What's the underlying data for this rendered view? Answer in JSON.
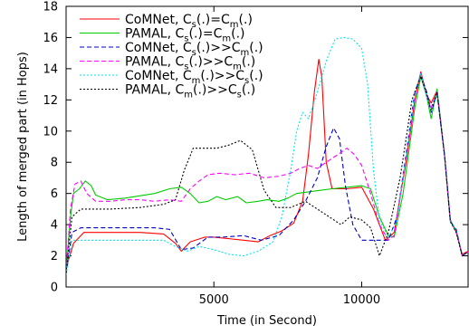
{
  "chart_data": {
    "type": "line",
    "title": "",
    "xlabel": "Time (in Second)",
    "ylabel": "Length of merged part (in Hops)",
    "xlim": [
      0,
      13600
    ],
    "ylim": [
      0,
      18
    ],
    "x_ticks": [
      5000,
      10000
    ],
    "y_ticks": [
      0,
      2,
      4,
      6,
      8,
      10,
      12,
      14,
      16,
      18
    ],
    "legend_position": "top-left",
    "series": [
      {
        "name": "CoMNet, C_s(.)=C_m(.)",
        "legend": {
          "a": "CoMNet, C",
          "s1": "s",
          "b": "(.)=C",
          "s2": "m",
          "c": "(.)"
        },
        "color": "#ff0000",
        "dash": "solid",
        "points": [
          [
            0,
            1.2
          ],
          [
            250,
            2.8
          ],
          [
            600,
            3.5
          ],
          [
            1200,
            3.5
          ],
          [
            2500,
            3.5
          ],
          [
            3300,
            3.4
          ],
          [
            3700,
            2.8
          ],
          [
            3900,
            2.3
          ],
          [
            4200,
            2.9
          ],
          [
            4700,
            3.2
          ],
          [
            5000,
            3.2
          ],
          [
            5500,
            3.1
          ],
          [
            6000,
            3.0
          ],
          [
            6500,
            2.9
          ],
          [
            6900,
            3.3
          ],
          [
            7300,
            3.6
          ],
          [
            7700,
            4.1
          ],
          [
            8000,
            5.5
          ],
          [
            8200,
            8.5
          ],
          [
            8400,
            12.5
          ],
          [
            8550,
            14.6
          ],
          [
            8650,
            13.5
          ],
          [
            8800,
            8.0
          ],
          [
            9000,
            6.3
          ],
          [
            9500,
            6.3
          ],
          [
            10000,
            6.4
          ],
          [
            10400,
            5.0
          ],
          [
            10800,
            3.0
          ],
          [
            11100,
            3.5
          ],
          [
            11500,
            8.0
          ],
          [
            11800,
            12.0
          ],
          [
            12000,
            13.8
          ],
          [
            12200,
            12.3
          ],
          [
            12350,
            11.8
          ],
          [
            12550,
            12.6
          ],
          [
            12800,
            8.5
          ],
          [
            13000,
            4.3
          ],
          [
            13200,
            3.5
          ],
          [
            13400,
            2.1
          ],
          [
            13600,
            2.3
          ],
          [
            13900,
            2.6
          ],
          [
            14000,
            3.0
          ]
        ]
      },
      {
        "name": "PAMAL, C_s(.)=C_m(.)",
        "legend": {
          "a": "PAMAL, C",
          "s1": "s",
          "b": "(.)=C",
          "s2": "m",
          "c": "(.)"
        },
        "color": "#00cc00",
        "dash": "solid",
        "points": [
          [
            0,
            1.0
          ],
          [
            150,
            4.5
          ],
          [
            250,
            6.0
          ],
          [
            450,
            6.3
          ],
          [
            650,
            6.8
          ],
          [
            850,
            6.5
          ],
          [
            1000,
            5.9
          ],
          [
            1400,
            5.6
          ],
          [
            2000,
            5.7
          ],
          [
            3000,
            6.0
          ],
          [
            3500,
            6.3
          ],
          [
            3900,
            6.4
          ],
          [
            4200,
            6.0
          ],
          [
            4500,
            5.4
          ],
          [
            4800,
            5.5
          ],
          [
            5100,
            5.8
          ],
          [
            5400,
            5.6
          ],
          [
            5800,
            5.8
          ],
          [
            6100,
            5.4
          ],
          [
            6500,
            5.5
          ],
          [
            6800,
            5.6
          ],
          [
            7200,
            5.5
          ],
          [
            7500,
            5.7
          ],
          [
            7800,
            6.0
          ],
          [
            8200,
            6.1
          ],
          [
            8600,
            6.2
          ],
          [
            9000,
            6.3
          ],
          [
            9500,
            6.4
          ],
          [
            10000,
            6.5
          ],
          [
            10300,
            6.3
          ],
          [
            10600,
            4.5
          ],
          [
            10900,
            3.3
          ],
          [
            11100,
            3.2
          ],
          [
            11400,
            6.0
          ],
          [
            11800,
            11.5
          ],
          [
            12000,
            13.5
          ],
          [
            12200,
            12.2
          ],
          [
            12350,
            10.8
          ],
          [
            12550,
            12.7
          ],
          [
            12800,
            8.5
          ],
          [
            13000,
            4.2
          ],
          [
            13200,
            3.6
          ],
          [
            13400,
            2.0
          ],
          [
            13700,
            2.4
          ],
          [
            14000,
            3.0
          ]
        ]
      },
      {
        "name": "CoMNet, C_s(.)>>C_m(.)",
        "legend": {
          "a": "CoMNet, C",
          "s1": "s",
          "b": "(.)>>C",
          "s2": "m",
          "c": "(.)"
        },
        "color": "#0000cc",
        "dash": "5,3",
        "points": [
          [
            0,
            0.8
          ],
          [
            200,
            3.5
          ],
          [
            500,
            3.8
          ],
          [
            1000,
            3.8
          ],
          [
            2000,
            3.8
          ],
          [
            3000,
            3.8
          ],
          [
            3500,
            3.7
          ],
          [
            3900,
            2.4
          ],
          [
            4300,
            2.5
          ],
          [
            4800,
            3.2
          ],
          [
            5300,
            3.2
          ],
          [
            6000,
            3.3
          ],
          [
            6600,
            3.0
          ],
          [
            7200,
            3.3
          ],
          [
            7700,
            4.3
          ],
          [
            8100,
            5.5
          ],
          [
            8500,
            7.0
          ],
          [
            8800,
            9.0
          ],
          [
            9050,
            10.2
          ],
          [
            9250,
            9.5
          ],
          [
            9450,
            6.5
          ],
          [
            9700,
            4.0
          ],
          [
            10000,
            3.0
          ],
          [
            10500,
            3.0
          ],
          [
            10900,
            3.0
          ],
          [
            11200,
            4.5
          ],
          [
            11500,
            8.5
          ],
          [
            11800,
            12.5
          ],
          [
            12000,
            13.6
          ],
          [
            12200,
            12.5
          ],
          [
            12350,
            11.2
          ],
          [
            12550,
            12.4
          ],
          [
            12800,
            8.5
          ],
          [
            13000,
            4.2
          ],
          [
            13200,
            3.7
          ],
          [
            13400,
            2.0
          ],
          [
            13700,
            2.4
          ],
          [
            14000,
            3.0
          ]
        ]
      },
      {
        "name": "PAMAL, C_s(.)>>C_m(.)",
        "legend": {
          "a": "PAMAL, C",
          "s1": "s",
          "b": "(.)>>C",
          "s2": "m",
          "c": "(.)"
        },
        "color": "#ff00ff",
        "dash": "5,3",
        "points": [
          [
            0,
            1.0
          ],
          [
            150,
            5.0
          ],
          [
            300,
            6.6
          ],
          [
            500,
            6.8
          ],
          [
            700,
            6.0
          ],
          [
            1000,
            5.5
          ],
          [
            1500,
            5.5
          ],
          [
            2000,
            5.6
          ],
          [
            2500,
            5.6
          ],
          [
            3000,
            5.5
          ],
          [
            3500,
            5.6
          ],
          [
            3900,
            5.5
          ],
          [
            4200,
            6.3
          ],
          [
            4500,
            6.8
          ],
          [
            4800,
            7.2
          ],
          [
            5200,
            7.3
          ],
          [
            5700,
            7.2
          ],
          [
            6200,
            7.3
          ],
          [
            6700,
            7.0
          ],
          [
            7200,
            7.1
          ],
          [
            7600,
            7.3
          ],
          [
            7900,
            7.6
          ],
          [
            8200,
            7.8
          ],
          [
            8500,
            7.6
          ],
          [
            8800,
            8.0
          ],
          [
            9200,
            8.5
          ],
          [
            9500,
            8.9
          ],
          [
            9750,
            8.5
          ],
          [
            10000,
            7.8
          ],
          [
            10300,
            6.0
          ],
          [
            10600,
            4.0
          ],
          [
            10900,
            3.0
          ],
          [
            11100,
            3.3
          ],
          [
            11400,
            7.0
          ],
          [
            11800,
            12.0
          ],
          [
            12000,
            13.7
          ],
          [
            12200,
            12.3
          ],
          [
            12350,
            11.5
          ],
          [
            12550,
            12.5
          ],
          [
            12800,
            8.5
          ],
          [
            13000,
            4.3
          ],
          [
            13200,
            3.6
          ],
          [
            13400,
            2.0
          ],
          [
            13700,
            2.4
          ],
          [
            14000,
            3.0
          ]
        ]
      },
      {
        "name": "CoMNet, C_m(.)>>C_s(.)",
        "legend": {
          "a": "CoMNet, C",
          "s1": "m",
          "b": "(.)>>C",
          "s2": "s",
          "c": "(.)"
        },
        "color": "#00e5ee",
        "dash": "2,2",
        "points": [
          [
            0,
            0.8
          ],
          [
            200,
            3.0
          ],
          [
            500,
            3.0
          ],
          [
            1500,
            3.0
          ],
          [
            2500,
            3.0
          ],
          [
            3300,
            3.0
          ],
          [
            3700,
            2.6
          ],
          [
            4100,
            2.3
          ],
          [
            4500,
            2.6
          ],
          [
            5000,
            2.4
          ],
          [
            5500,
            2.1
          ],
          [
            6000,
            2.0
          ],
          [
            6500,
            2.3
          ],
          [
            7000,
            2.9
          ],
          [
            7300,
            4.5
          ],
          [
            7600,
            7.5
          ],
          [
            7800,
            10.0
          ],
          [
            8000,
            11.2
          ],
          [
            8200,
            10.8
          ],
          [
            8500,
            12.5
          ],
          [
            8800,
            14.5
          ],
          [
            9100,
            15.9
          ],
          [
            9400,
            16.0
          ],
          [
            9700,
            15.9
          ],
          [
            10000,
            15.3
          ],
          [
            10200,
            13.0
          ],
          [
            10400,
            7.5
          ],
          [
            10600,
            4.3
          ],
          [
            10900,
            3.2
          ],
          [
            11200,
            4.2
          ],
          [
            11500,
            8.5
          ],
          [
            11800,
            12.5
          ],
          [
            12000,
            13.7
          ],
          [
            12200,
            12.2
          ],
          [
            12350,
            11.3
          ],
          [
            12550,
            12.3
          ],
          [
            12800,
            8.5
          ],
          [
            13000,
            4.3
          ],
          [
            13200,
            3.6
          ],
          [
            13400,
            2.0
          ],
          [
            13700,
            2.4
          ],
          [
            14000,
            3.0
          ]
        ]
      },
      {
        "name": "PAMAL, C_m(.)>>C_s(.)",
        "legend": {
          "a": "PAMAL, C",
          "s1": "m",
          "b": "(.)>>C",
          "s2": "s",
          "c": "(.)"
        },
        "color": "#000000",
        "dash": "2,2",
        "points": [
          [
            0,
            0.9
          ],
          [
            200,
            4.5
          ],
          [
            500,
            5.0
          ],
          [
            1500,
            5.0
          ],
          [
            2500,
            5.1
          ],
          [
            3300,
            5.3
          ],
          [
            3700,
            5.6
          ],
          [
            4000,
            7.5
          ],
          [
            4300,
            8.9
          ],
          [
            4700,
            8.9
          ],
          [
            5100,
            8.9
          ],
          [
            5500,
            9.1
          ],
          [
            5900,
            9.4
          ],
          [
            6300,
            8.8
          ],
          [
            6700,
            6.2
          ],
          [
            7100,
            5.1
          ],
          [
            7600,
            5.1
          ],
          [
            8100,
            5.5
          ],
          [
            8500,
            5.0
          ],
          [
            8900,
            4.5
          ],
          [
            9300,
            4.0
          ],
          [
            9600,
            4.5
          ],
          [
            10000,
            4.3
          ],
          [
            10300,
            3.8
          ],
          [
            10600,
            2.0
          ],
          [
            10900,
            3.5
          ],
          [
            11300,
            7.0
          ],
          [
            11700,
            12.0
          ],
          [
            12000,
            13.5
          ],
          [
            12200,
            12.4
          ],
          [
            12350,
            11.3
          ],
          [
            12550,
            12.5
          ],
          [
            12800,
            8.5
          ],
          [
            13000,
            4.2
          ],
          [
            13200,
            3.5
          ],
          [
            13400,
            2.0
          ],
          [
            13700,
            2.4
          ],
          [
            14000,
            3.0
          ]
        ]
      }
    ]
  }
}
